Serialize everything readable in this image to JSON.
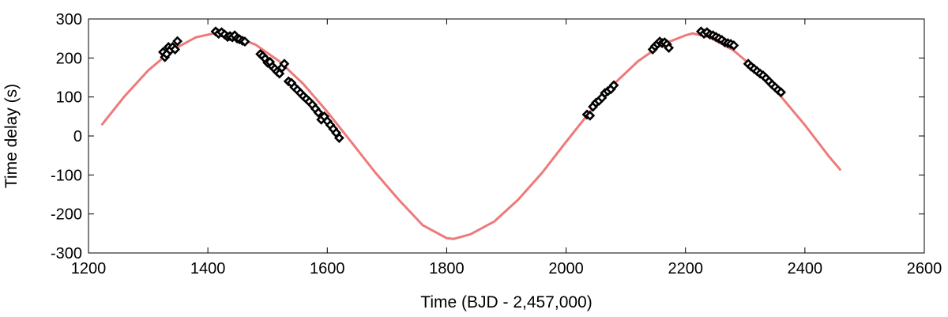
{
  "chart_data": {
    "type": "scatter",
    "xlabel": "Time (BJD - 2,457,000)",
    "ylabel": "Time delay (s)",
    "xlim": [
      1200,
      2600
    ],
    "ylim": [
      -300,
      300
    ],
    "x_ticks": [
      1200,
      1400,
      1600,
      1800,
      2000,
      2200,
      2400,
      2600
    ],
    "y_ticks": [
      -300,
      -200,
      -100,
      0,
      100,
      200,
      300
    ],
    "grid": false,
    "colors": {
      "model": "#ee7a7a",
      "points": "#000000",
      "frame": "#000000"
    },
    "series": [
      {
        "type": "line",
        "x": [
          1222,
          1260,
          1300,
          1340,
          1380,
          1410,
          1440,
          1480,
          1520,
          1560,
          1600,
          1640,
          1680,
          1720,
          1760,
          1800,
          1812,
          1840,
          1880,
          1920,
          1960,
          2000,
          2040,
          2080,
          2120,
          2160,
          2200,
          2212,
          2240,
          2280,
          2320,
          2360,
          2400,
          2440,
          2460
        ],
        "y": [
          28,
          101,
          168,
          220,
          253,
          263,
          258,
          234,
          191,
          133,
          62,
          -15,
          -93,
          -164,
          -229,
          -262,
          -264,
          -252,
          -219,
          -163,
          -94,
          -15,
          62,
          133,
          191,
          234,
          258,
          263,
          253,
          220,
          168,
          101,
          28,
          -52,
          -88
        ]
      },
      {
        "type": "scatter",
        "marker": "diamond",
        "x": [
          1325,
          1328,
          1331,
          1334,
          1337,
          1341,
          1345,
          1349,
          1413,
          1418,
          1423,
          1428,
          1433,
          1437,
          1441,
          1445,
          1449,
          1453,
          1458,
          1462,
          1488,
          1492,
          1496,
          1500,
          1504,
          1508,
          1512,
          1516,
          1520,
          1524,
          1528,
          1535,
          1540,
          1545,
          1550,
          1555,
          1560,
          1565,
          1570,
          1575,
          1580,
          1585,
          1590,
          1595,
          1600,
          1605,
          1610,
          1615,
          1620,
          2035,
          2040,
          2045,
          2050,
          2055,
          2060,
          2065,
          2070,
          2075,
          2080,
          2145,
          2149,
          2153,
          2157,
          2161,
          2165,
          2169,
          2172,
          2226,
          2231,
          2236,
          2241,
          2246,
          2251,
          2256,
          2261,
          2266,
          2271,
          2276,
          2281,
          2305,
          2310,
          2315,
          2320,
          2325,
          2330,
          2335,
          2340,
          2345,
          2350,
          2355,
          2360
        ],
        "y": [
          215,
          202,
          210,
          228,
          220,
          228,
          222,
          243,
          268,
          262,
          266,
          260,
          254,
          256,
          253,
          258,
          250,
          248,
          244,
          242,
          210,
          205,
          198,
          188,
          190,
          178,
          172,
          165,
          160,
          175,
          185,
          140,
          136,
          125,
          118,
          110,
          102,
          95,
          88,
          80,
          70,
          60,
          42,
          50,
          38,
          28,
          18,
          8,
          -5,
          55,
          52,
          75,
          85,
          90,
          98,
          110,
          115,
          120,
          130,
          222,
          230,
          236,
          242,
          238,
          240,
          235,
          226,
          268,
          262,
          266,
          260,
          258,
          254,
          250,
          246,
          240,
          238,
          236,
          232,
          185,
          178,
          172,
          166,
          160,
          155,
          148,
          140,
          132,
          125,
          118,
          112
        ]
      }
    ]
  }
}
